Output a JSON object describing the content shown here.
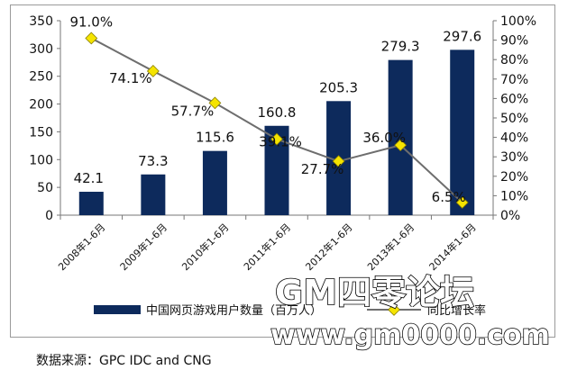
{
  "chart_data": {
    "type": "bar",
    "categories": [
      "2008年1-6月",
      "2009年1-6月",
      "2010年1-6月",
      "2011年1-6月",
      "2012年1-6月",
      "2013年1-6月",
      "2014年1-6月"
    ],
    "series": [
      {
        "name": "中国网页游戏用户数量（百万人）",
        "type": "bar",
        "axis": "left",
        "values": [
          42.1,
          73.3,
          115.6,
          160.8,
          205.3,
          279.3,
          297.6
        ],
        "labels": [
          "42.1",
          "73.3",
          "115.6",
          "160.8",
          "205.3",
          "279.3",
          "297.6"
        ]
      },
      {
        "name": "同比增长率",
        "type": "line",
        "axis": "right",
        "values": [
          91.0,
          74.1,
          57.7,
          39.1,
          27.7,
          36.0,
          6.5
        ],
        "labels": [
          "91.0%",
          "74.1%",
          "57.7%",
          "39.1%",
          "27.7%",
          "36.0%",
          "6.5%"
        ]
      }
    ],
    "ylim": [
      0,
      350
    ],
    "yticks": [
      "0",
      "50",
      "100",
      "150",
      "200",
      "250",
      "300",
      "350"
    ],
    "y2lim": [
      0,
      100
    ],
    "y2ticks": [
      "0%",
      "10%",
      "20%",
      "30%",
      "40%",
      "50%",
      "60%",
      "70%",
      "80%",
      "90%",
      "100%"
    ],
    "legend_position": "bottom",
    "grid": false,
    "colors": {
      "bar": "#0d2a5c",
      "line": "#6e6e6e",
      "marker": "#f5e400"
    }
  },
  "source": "数据来源：GPC IDC and CNG",
  "watermark": {
    "line1": "GM四零论坛",
    "line2": "www.gm0000.com"
  }
}
